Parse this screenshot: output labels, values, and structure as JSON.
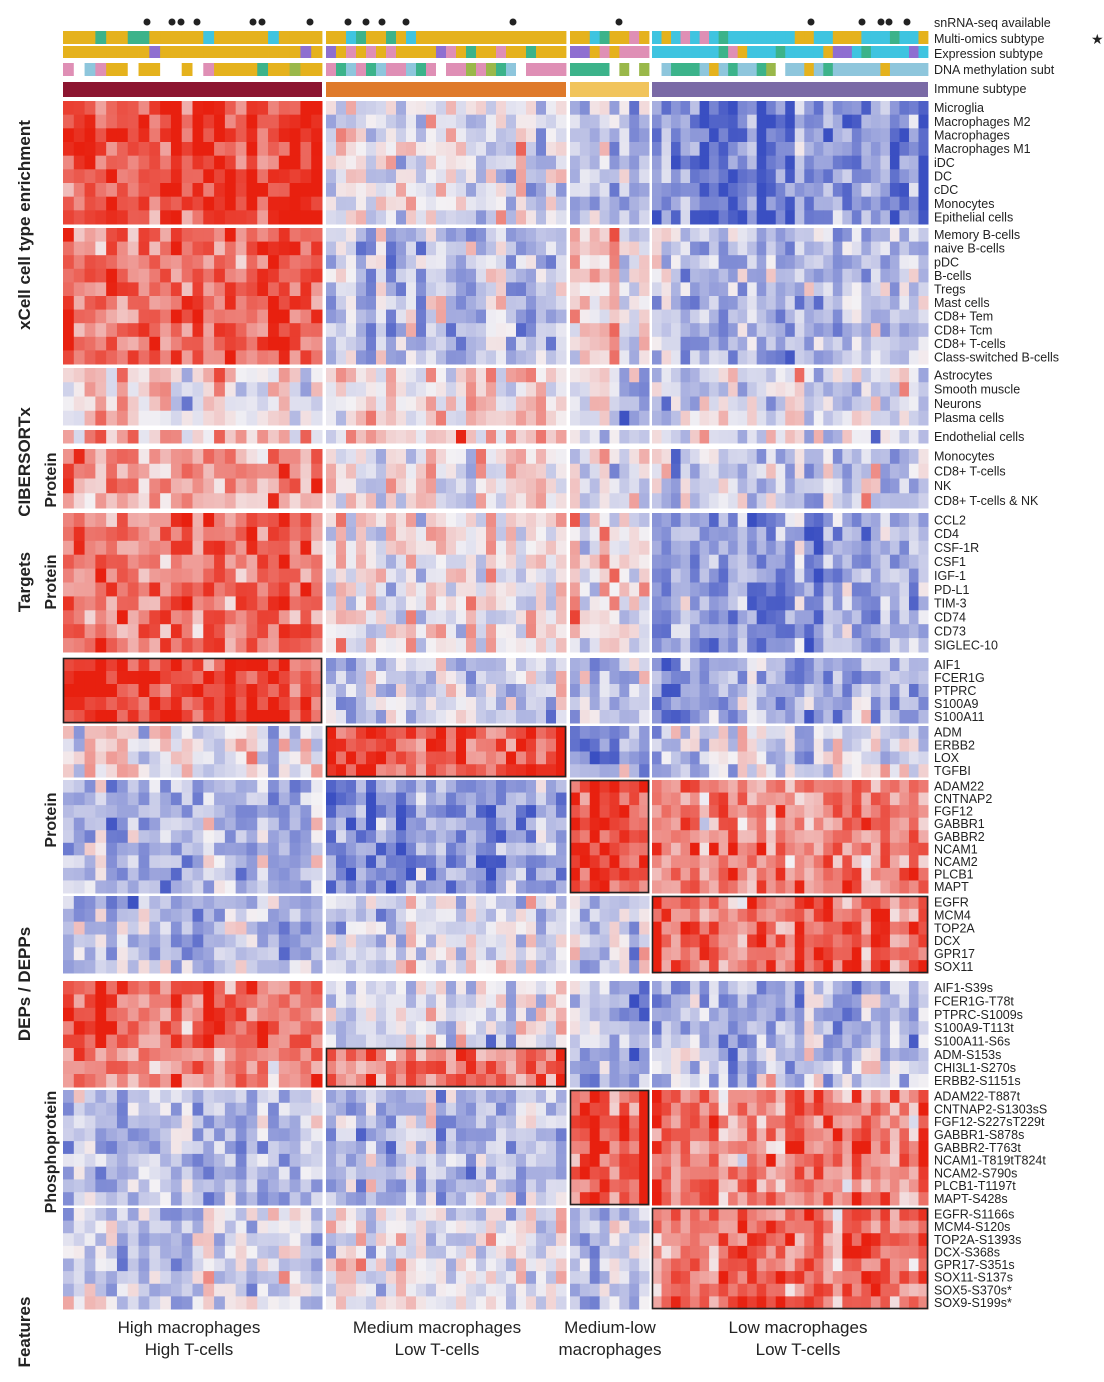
{
  "chart_data": {
    "type": "heatmap",
    "title": "",
    "colors": {
      "low": "#3a4fc2",
      "mid": "#f3f1f4",
      "high": "#e8200f",
      "box": "#222222",
      "star": "#b8860b"
    },
    "groups": [
      {
        "name": "High macrophages",
        "name2": "High T-cells",
        "immune_color": "#8c1530"
      },
      {
        "name": "Medium macrophages",
        "name2": "Low T-cells",
        "immune_color": "#df7a2a"
      },
      {
        "name": "Medium-low",
        "name2": "macrophages",
        "immune_color": "#f1c45c"
      },
      {
        "name": "Low macrophages",
        "name2": "Low T-cells",
        "immune_color": "#7a6aa6"
      }
    ],
    "annotation_tracks": [
      {
        "label": "snRNA-seq available"
      },
      {
        "label": "Multi-omics subtype",
        "marker": "★"
      },
      {
        "label": "Expression subtype"
      },
      {
        "label": "DNA methylation subt"
      },
      {
        "label": "Immune subtype"
      }
    ],
    "sections": [
      {
        "label": "xCell cell type enrichment",
        "sub": ""
      },
      {
        "label": "CIBERSORTx",
        "sub": "Protein"
      },
      {
        "label": "Targets",
        "sub": "Protein"
      },
      {
        "label": "DEPs / DEPPs",
        "sub": "Protein"
      },
      {
        "label": "",
        "sub": "Phosphoprotein"
      },
      {
        "label": "Features",
        "sub": ""
      }
    ],
    "blocks": [
      {
        "rows": [
          "Microglia",
          "Macrophages M2",
          "Macrophages",
          "Macrophages M1",
          "iDC",
          "DC",
          "cDC",
          "Monocytes",
          "Epithelial cells"
        ],
        "levels": [
          0.85,
          -0.05,
          -0.35,
          -0.7
        ]
      },
      {
        "rows": [
          "Memory B-cells",
          "naive B-cells",
          "pDC",
          "B-cells",
          "Tregs",
          "Mast cells",
          "CD8+ Tem",
          "CD8+ Tcm",
          "CD8+ T-cells",
          "Class-switched B-cells"
        ],
        "levels": [
          0.65,
          -0.25,
          0.1,
          -0.3
        ]
      },
      {
        "rows": [
          "Astrocytes",
          "Smooth muscle",
          "Neurons",
          "Plasma cells"
        ],
        "levels": [
          0.05,
          0.1,
          -0.1,
          -0.05
        ]
      },
      {
        "rows": [
          "Endothelial cells"
        ],
        "levels": [
          0.3,
          0.25,
          -0.2,
          -0.2
        ]
      },
      {
        "rows": [
          "Monocytes",
          "CD8+ T-cells",
          "NK",
          "CD8+ T-cells & NK"
        ],
        "levels": [
          0.4,
          0.0,
          -0.1,
          -0.2
        ]
      },
      {
        "rows": [
          "CCL2",
          "CD4",
          "CSF-1R",
          "CSF1",
          "IGF-1",
          "PD-L1",
          "TIM-3",
          "CD74",
          "CD73",
          "SIGLEC-10"
        ],
        "levels": [
          0.6,
          0.1,
          0.0,
          -0.45
        ]
      },
      {
        "rows": [
          "AIF1",
          "FCER1G",
          "PTPRC",
          "S100A9",
          "S100A11"
        ],
        "levels": [
          0.85,
          -0.2,
          -0.3,
          -0.45
        ]
      },
      {
        "rows": [
          "ADM",
          "ERBB2",
          "LOX",
          "TGFBI"
        ],
        "levels": [
          0.0,
          0.75,
          -0.55,
          -0.15
        ]
      },
      {
        "rows": [
          "ADAM22",
          "CNTNAP2",
          "FGF12",
          "GABBR1",
          "GABBR2",
          "NCAM1",
          "NCAM2",
          "PLCB1",
          "MAPT"
        ],
        "levels": [
          -0.35,
          -0.5,
          0.9,
          0.55
        ]
      },
      {
        "rows": [
          "EGFR",
          "MCM4",
          "TOP2A",
          "DCX",
          "GPR17",
          "SOX11"
        ],
        "levels": [
          -0.25,
          -0.1,
          -0.25,
          0.6
        ]
      },
      {
        "rows": [
          "AIF1-S39s",
          "FCER1G-T78t",
          "PTPRC-S1009s",
          "S100A9-T113t",
          "S100A11-S6s"
        ],
        "levels": [
          0.75,
          -0.1,
          -0.3,
          -0.4
        ]
      },
      {
        "rows": [
          "ADM-S153s",
          "CHI3L1-S270s",
          "ERBB2-S1151s"
        ],
        "levels": [
          0.5,
          0.6,
          -0.5,
          -0.25
        ]
      },
      {
        "rows": [
          "ADAM22-T887t",
          "CNTNAP2-S1303sS",
          "FGF12-S227sT229t",
          "GABBR1-S878s",
          "GABBR2-T763t",
          "NCAM1-T819tT824t",
          "NCAM2-S790s",
          "PLCB1-T1197t",
          "MAPT-S428s"
        ],
        "levels": [
          -0.3,
          -0.35,
          0.85,
          0.5
        ]
      },
      {
        "rows": [
          "EGFR-S1166s",
          "MCM4-S120s",
          "TOP2A-S1393s",
          "DCX-S368s",
          "GPR17-S351s",
          "SOX11-S137s",
          "SOX5-S370s*",
          "SOX9-S199s*"
        ],
        "levels": [
          -0.2,
          -0.05,
          -0.2,
          0.6
        ]
      }
    ]
  }
}
